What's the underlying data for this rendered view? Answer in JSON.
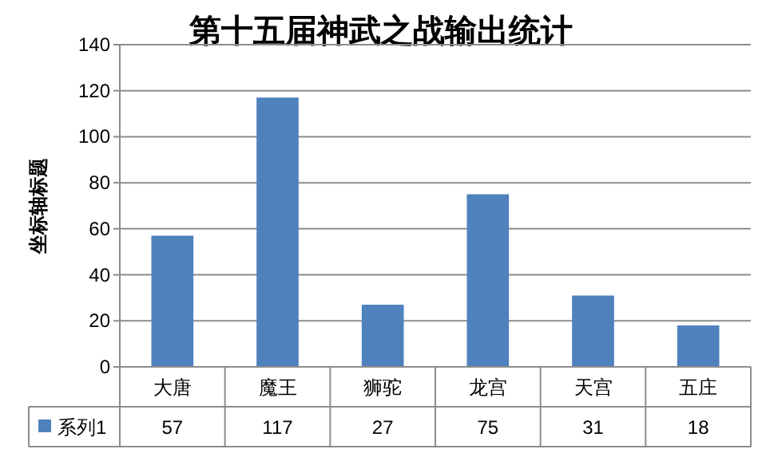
{
  "chart_data": {
    "type": "bar",
    "title": "第十五届神武之战输出统计",
    "ylabel": "坐标轴标题",
    "categories": [
      "大唐",
      "魔王",
      "狮驼",
      "龙宫",
      "天宫",
      "五庄"
    ],
    "series": [
      {
        "name": "系列1",
        "color": "#4f81bd",
        "values": [
          57,
          117,
          27,
          75,
          31,
          18
        ]
      }
    ],
    "ylim": [
      0,
      140
    ],
    "yticks": [
      0,
      20,
      40,
      60,
      80,
      100,
      120,
      140
    ],
    "grid": "y",
    "data_labels": true,
    "legend": "bottom left"
  }
}
